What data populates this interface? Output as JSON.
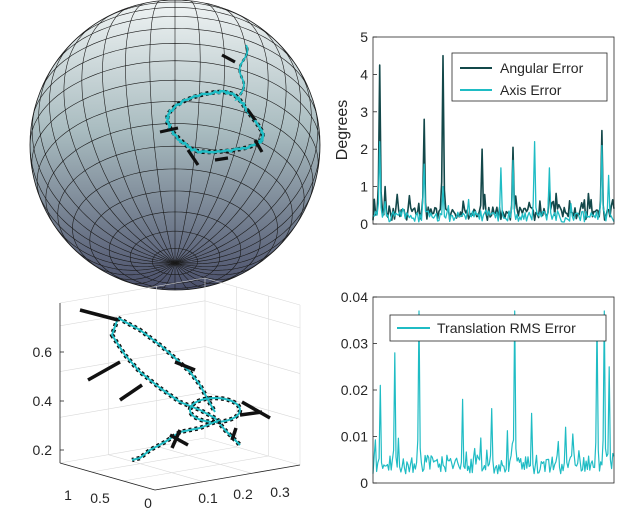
{
  "chart_data": [
    {
      "type": "surface",
      "description_name": "sphere-trajectory",
      "title": "",
      "colors": {
        "top": "#f0f4f4",
        "bottom": "#4a4f6a",
        "trajectory": "#1fbcc4",
        "frames": "#111111"
      }
    },
    {
      "type": "line",
      "title": "",
      "xlabel": "",
      "ylabel": "Degrees",
      "ylim": [
        0,
        5
      ],
      "yticks": [
        0,
        1,
        2,
        3,
        4,
        5
      ],
      "legend": "top-right",
      "series": [
        {
          "name": "Angular Error",
          "color": "#13484a",
          "peaks": [
            [
              0.03,
              4.25
            ],
            [
              0.05,
              1.0
            ],
            [
              0.21,
              2.8
            ],
            [
              0.29,
              4.5
            ],
            [
              0.45,
              2.0
            ],
            [
              0.58,
              2.05
            ],
            [
              0.73,
              1.05
            ],
            [
              0.86,
              0.4
            ],
            [
              0.95,
              2.5
            ]
          ]
        },
        {
          "name": "Axis Error",
          "color": "#1fbcc4",
          "peaks": [
            [
              0.03,
              2.2
            ],
            [
              0.05,
              0.6
            ],
            [
              0.21,
              1.6
            ],
            [
              0.29,
              1.0
            ],
            [
              0.53,
              1.5
            ],
            [
              0.58,
              1.7
            ],
            [
              0.67,
              2.2
            ],
            [
              0.73,
              1.5
            ],
            [
              0.95,
              2.1
            ],
            [
              0.98,
              1.3
            ]
          ]
        }
      ]
    },
    {
      "type": "line3d",
      "title": "",
      "yticks": [
        0.2,
        0.4,
        0.6
      ],
      "xticks": [
        1,
        0.5,
        0
      ],
      "xticks2": [
        0.1,
        0.2,
        0.3
      ],
      "colors": {
        "trajectory": "#1fbcc4",
        "frames": "#111111"
      }
    },
    {
      "type": "line",
      "title": "",
      "xlabel": "",
      "ylabel": "",
      "ylim": [
        0,
        0.04
      ],
      "yticks": [
        0,
        0.01,
        0.02,
        0.03,
        0.04
      ],
      "yticklabels": [
        "0",
        "0.01",
        "0.02",
        "0.03",
        "0.04"
      ],
      "legend": "top-right",
      "series": [
        {
          "name": "Translation RMS Error",
          "color": "#1fbcc4",
          "peaks": [
            [
              0.03,
              0.021
            ],
            [
              0.09,
              0.028
            ],
            [
              0.19,
              0.037
            ],
            [
              0.37,
              0.018
            ],
            [
              0.49,
              0.016
            ],
            [
              0.59,
              0.037
            ],
            [
              0.66,
              0.015
            ],
            [
              0.8,
              0.012
            ],
            [
              0.93,
              0.035
            ],
            [
              0.96,
              0.037
            ],
            [
              0.98,
              0.025
            ]
          ]
        }
      ]
    }
  ]
}
